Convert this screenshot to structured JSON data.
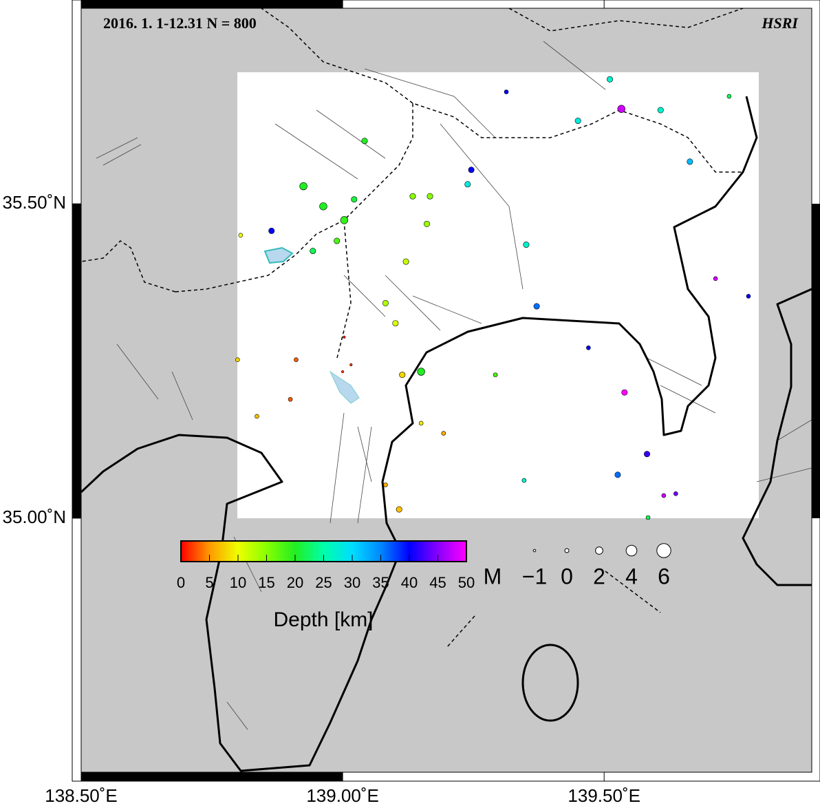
{
  "title": "2016. 1. 1-12.31  N = 800",
  "credit": "HSRI",
  "map": {
    "xlim": [
      138.5,
      139.897
    ],
    "ylim": [
      34.596,
      35.811
    ],
    "xticks": [
      {
        "value": 138.5,
        "label": "138.50˚E"
      },
      {
        "value": 139.0,
        "label": "139.00˚E"
      },
      {
        "value": 139.5,
        "label": "139.50˚E"
      }
    ],
    "yticks": [
      {
        "value": 35.0,
        "label": "35.00˚N"
      },
      {
        "value": 35.5,
        "label": "35.50˚N"
      }
    ]
  },
  "colorbar": {
    "label": "Depth [km]",
    "lim": [
      0,
      50
    ],
    "ticks": [
      0,
      5,
      10,
      15,
      20,
      25,
      30,
      35,
      40,
      45,
      50
    ],
    "colors": [
      "#ff0000",
      "#ff9900",
      "#eeff00",
      "#88ff00",
      "#22ee22",
      "#00ffaa",
      "#00ddff",
      "#0088ff",
      "#0000ff",
      "#8800ff",
      "#ff00ff"
    ]
  },
  "magnitude_legend": {
    "label": "M",
    "ticks": [
      {
        "value": -1,
        "label": "−1"
      },
      0,
      2,
      4,
      6
    ]
  },
  "events": [
    {
      "lon": 139.533,
      "lat": 35.651,
      "depth": 48,
      "mag": 2
    },
    {
      "lon": 139.313,
      "lat": 35.678,
      "depth": 40,
      "mag": 0
    },
    {
      "lon": 139.246,
      "lat": 35.554,
      "depth": 40,
      "mag": 1
    },
    {
      "lon": 138.864,
      "lat": 35.457,
      "depth": 40,
      "mag": 1
    },
    {
      "lon": 138.925,
      "lat": 35.528,
      "depth": 20,
      "mag": 2
    },
    {
      "lon": 138.963,
      "lat": 35.496,
      "depth": 20,
      "mag": 2
    },
    {
      "lon": 139.003,
      "lat": 35.474,
      "depth": 19,
      "mag": 2
    },
    {
      "lon": 138.989,
      "lat": 35.441,
      "depth": 18,
      "mag": 1
    },
    {
      "lon": 138.943,
      "lat": 35.425,
      "depth": 22,
      "mag": 1
    },
    {
      "lon": 139.022,
      "lat": 35.507,
      "depth": 21,
      "mag": 1
    },
    {
      "lon": 139.042,
      "lat": 35.6,
      "depth": 20,
      "mag": 1
    },
    {
      "lon": 139.134,
      "lat": 35.512,
      "depth": 15,
      "mag": 1
    },
    {
      "lon": 139.167,
      "lat": 35.512,
      "depth": 15,
      "mag": 1
    },
    {
      "lon": 139.161,
      "lat": 35.468,
      "depth": 14,
      "mag": 1
    },
    {
      "lon": 139.121,
      "lat": 35.408,
      "depth": 12,
      "mag": 1
    },
    {
      "lon": 139.082,
      "lat": 35.342,
      "depth": 13,
      "mag": 1
    },
    {
      "lon": 139.101,
      "lat": 35.31,
      "depth": 11,
      "mag": 1
    },
    {
      "lon": 139.114,
      "lat": 35.228,
      "depth": 8,
      "mag": 1
    },
    {
      "lon": 139.0,
      "lat": 35.233,
      "depth": 2,
      "mag": -1
    },
    {
      "lon": 139.016,
      "lat": 35.244,
      "depth": 2,
      "mag": -1
    },
    {
      "lon": 139.003,
      "lat": 35.288,
      "depth": 1,
      "mag": -1
    },
    {
      "lon": 139.082,
      "lat": 35.053,
      "depth": 6,
      "mag": 0
    },
    {
      "lon": 139.108,
      "lat": 35.014,
      "depth": 7,
      "mag": 1
    },
    {
      "lon": 138.799,
      "lat": 35.252,
      "depth": 8,
      "mag": 0
    },
    {
      "lon": 138.911,
      "lat": 35.252,
      "depth": 3,
      "mag": 0
    },
    {
      "lon": 139.15,
      "lat": 35.151,
      "depth": 9,
      "mag": 0
    },
    {
      "lon": 139.15,
      "lat": 35.233,
      "depth": 20,
      "mag": 2
    },
    {
      "lon": 139.239,
      "lat": 35.531,
      "depth": 28,
      "mag": 1
    },
    {
      "lon": 139.45,
      "lat": 35.632,
      "depth": 28,
      "mag": 1
    },
    {
      "lon": 139.511,
      "lat": 35.698,
      "depth": 27,
      "mag": 1
    },
    {
      "lon": 139.608,
      "lat": 35.649,
      "depth": 27,
      "mag": 1
    },
    {
      "lon": 139.664,
      "lat": 35.567,
      "depth": 32,
      "mag": 1
    },
    {
      "lon": 139.739,
      "lat": 35.671,
      "depth": 22,
      "mag": 0
    },
    {
      "lon": 139.351,
      "lat": 35.435,
      "depth": 27,
      "mag": 1
    },
    {
      "lon": 139.371,
      "lat": 35.337,
      "depth": 36,
      "mag": 1
    },
    {
      "lon": 139.47,
      "lat": 35.271,
      "depth": 40,
      "mag": 0
    },
    {
      "lon": 139.539,
      "lat": 35.2,
      "depth": 50,
      "mag": 1
    },
    {
      "lon": 139.582,
      "lat": 35.102,
      "depth": 42,
      "mag": 1
    },
    {
      "lon": 139.526,
      "lat": 35.069,
      "depth": 36,
      "mag": 1
    },
    {
      "lon": 139.614,
      "lat": 35.036,
      "depth": 48,
      "mag": 0
    },
    {
      "lon": 139.637,
      "lat": 35.039,
      "depth": 44,
      "mag": 0
    },
    {
      "lon": 139.776,
      "lat": 35.353,
      "depth": 40,
      "mag": 0
    },
    {
      "lon": 139.713,
      "lat": 35.381,
      "depth": 48,
      "mag": 0
    },
    {
      "lon": 139.584,
      "lat": 35.001,
      "depth": 22,
      "mag": 0
    },
    {
      "lon": 139.347,
      "lat": 35.06,
      "depth": 27,
      "mag": 0
    },
    {
      "lon": 138.836,
      "lat": 35.162,
      "depth": 7,
      "mag": 0
    },
    {
      "lon": 138.9,
      "lat": 35.189,
      "depth": 3,
      "mag": 0
    },
    {
      "lon": 138.805,
      "lat": 35.45,
      "depth": 10,
      "mag": 0
    },
    {
      "lon": 139.292,
      "lat": 35.228,
      "depth": 18,
      "mag": 0
    },
    {
      "lon": 139.193,
      "lat": 35.135,
      "depth": 6,
      "mag": 0
    }
  ]
}
